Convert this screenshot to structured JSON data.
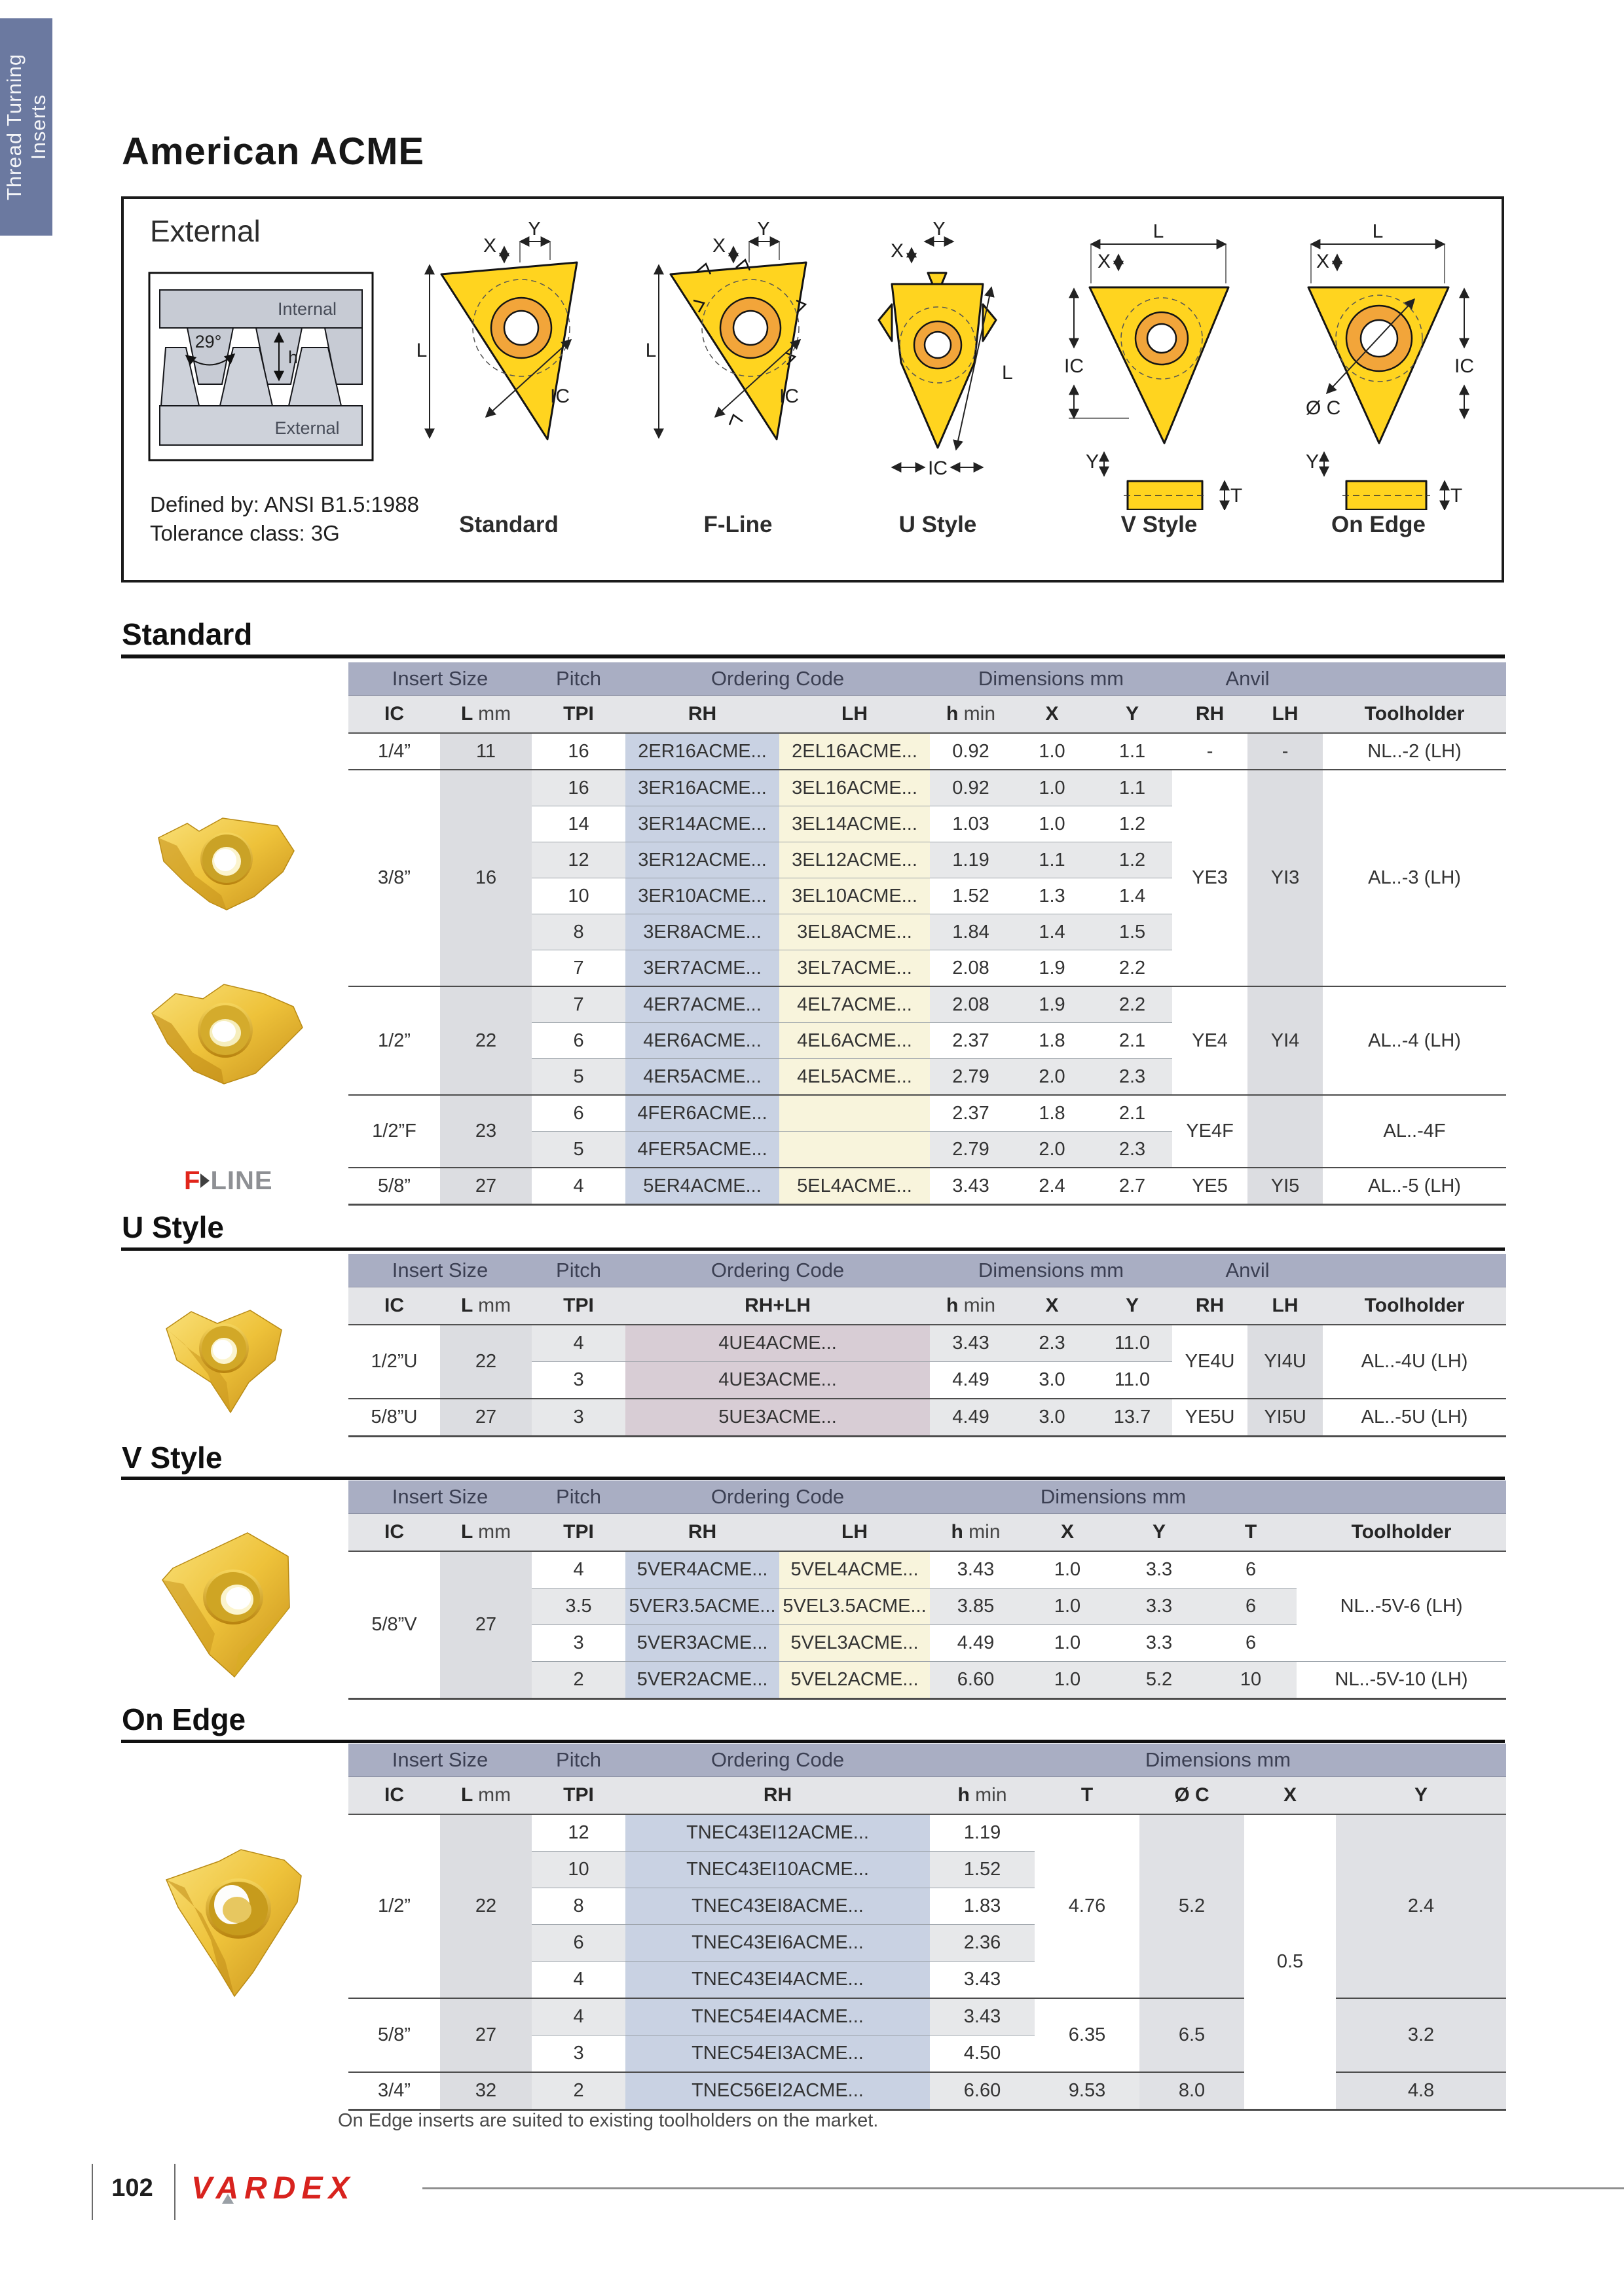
{
  "colors": {
    "sidebar_blue": "#6b79a0",
    "group_header": "#a9aec3",
    "column_header": "#e4e5e8",
    "band_gray": "#dcdde1",
    "row_stripe": "#e7e8ea",
    "band_blue": "#c9d2e3",
    "band_yellow": "#f8f4dc",
    "band_mauve": "#d8cdd5",
    "brand_red": "#d8231e",
    "insert_gold": "#eec23a"
  },
  "sidebar": {
    "line1": "Thread Turning",
    "line2": "Inserts"
  },
  "title": "American ACME",
  "external_box": {
    "title": "External",
    "defined_by": "Defined by: ANSI B1.5:1988",
    "tolerance": "Tolerance class: 3G",
    "profile": {
      "angle": "29°",
      "internal": "Internal",
      "external": "External",
      "h": "h"
    },
    "dim_labels": {
      "x": "X",
      "y": "Y",
      "l": "L",
      "ic": "IC",
      "t": "T",
      "dc": "Ø C"
    },
    "captions": [
      "Standard",
      "F-Line",
      "U Style",
      "V Style",
      "On Edge"
    ]
  },
  "labels": {
    "insert_size": "Insert Size",
    "pitch": "Pitch",
    "ordering_code": "Ordering Code",
    "dimensions": "Dimensions mm",
    "anvil": "Anvil",
    "ic": "IC",
    "l": "L",
    "mm": "mm",
    "tpi": "TPI",
    "rh": "RH",
    "lh": "LH",
    "rh_lh": "RH+LH",
    "h": "h",
    "min": "min",
    "x": "X",
    "y": "Y",
    "t": "T",
    "dc": "Ø C",
    "toolholder": "Toolholder"
  },
  "standard": {
    "heading": "Standard",
    "groups": [
      {
        "ic": "1/4”",
        "l": "11",
        "anvil_rh": "-",
        "anvil_lh": "-",
        "toolholder": "NL..-2 (LH)",
        "rows": [
          {
            "tpi": "16",
            "rh": "2ER16ACME...",
            "lh": "2EL16ACME...",
            "h": "0.92",
            "x": "1.0",
            "y": "1.1"
          }
        ]
      },
      {
        "ic": "3/8”",
        "l": "16",
        "anvil_rh": "YE3",
        "anvil_lh": "YI3",
        "toolholder": "AL..-3 (LH)",
        "rows": [
          {
            "tpi": "16",
            "rh": "3ER16ACME...",
            "lh": "3EL16ACME...",
            "h": "0.92",
            "x": "1.0",
            "y": "1.1"
          },
          {
            "tpi": "14",
            "rh": "3ER14ACME...",
            "lh": "3EL14ACME...",
            "h": "1.03",
            "x": "1.0",
            "y": "1.2"
          },
          {
            "tpi": "12",
            "rh": "3ER12ACME...",
            "lh": "3EL12ACME...",
            "h": "1.19",
            "x": "1.1",
            "y": "1.2"
          },
          {
            "tpi": "10",
            "rh": "3ER10ACME...",
            "lh": "3EL10ACME...",
            "h": "1.52",
            "x": "1.3",
            "y": "1.4"
          },
          {
            "tpi": "8",
            "rh": "3ER8ACME...",
            "lh": "3EL8ACME...",
            "h": "1.84",
            "x": "1.4",
            "y": "1.5"
          },
          {
            "tpi": "7",
            "rh": "3ER7ACME...",
            "lh": "3EL7ACME...",
            "h": "2.08",
            "x": "1.9",
            "y": "2.2"
          }
        ]
      },
      {
        "ic": "1/2”",
        "l": "22",
        "anvil_rh": "YE4",
        "anvil_lh": "YI4",
        "toolholder": "AL..-4 (LH)",
        "rows": [
          {
            "tpi": "7",
            "rh": "4ER7ACME...",
            "lh": "4EL7ACME...",
            "h": "2.08",
            "x": "1.9",
            "y": "2.2"
          },
          {
            "tpi": "6",
            "rh": "4ER6ACME...",
            "lh": "4EL6ACME...",
            "h": "2.37",
            "x": "1.8",
            "y": "2.1"
          },
          {
            "tpi": "5",
            "rh": "4ER5ACME...",
            "lh": "4EL5ACME...",
            "h": "2.79",
            "x": "2.0",
            "y": "2.3"
          }
        ]
      },
      {
        "ic": "1/2”F",
        "l": "23",
        "anvil_rh": "YE4F",
        "anvil_lh": "",
        "toolholder": "AL..-4F",
        "rows": [
          {
            "tpi": "6",
            "rh": "4FER6ACME...",
            "lh": "",
            "h": "2.37",
            "x": "1.8",
            "y": "2.1"
          },
          {
            "tpi": "5",
            "rh": "4FER5ACME...",
            "lh": "",
            "h": "2.79",
            "x": "2.0",
            "y": "2.3"
          }
        ]
      },
      {
        "ic": "5/8”",
        "l": "27",
        "anvil_rh": "YE5",
        "anvil_lh": "YI5",
        "toolholder": "AL..-5 (LH)",
        "rows": [
          {
            "tpi": "4",
            "rh": "5ER4ACME...",
            "lh": "5EL4ACME...",
            "h": "3.43",
            "x": "2.4",
            "y": "2.7"
          }
        ]
      }
    ]
  },
  "u_style": {
    "heading": "U Style",
    "groups": [
      {
        "ic": "1/2”U",
        "l": "22",
        "anvil_rh": "YE4U",
        "anvil_lh": "YI4U",
        "toolholder": "AL..-4U (LH)",
        "rows": [
          {
            "tpi": "4",
            "code": "4UE4ACME...",
            "h": "3.43",
            "x": "2.3",
            "y": "11.0"
          },
          {
            "tpi": "3",
            "code": "4UE3ACME...",
            "h": "4.49",
            "x": "3.0",
            "y": "11.0"
          }
        ]
      },
      {
        "ic": "5/8”U",
        "l": "27",
        "anvil_rh": "YE5U",
        "anvil_lh": "YI5U",
        "toolholder": "AL..-5U (LH)",
        "rows": [
          {
            "tpi": "3",
            "code": "5UE3ACME...",
            "h": "4.49",
            "x": "3.0",
            "y": "13.7"
          }
        ]
      }
    ]
  },
  "v_style": {
    "heading": "V Style",
    "groups": [
      {
        "ic": "5/8”V",
        "l": "27",
        "rows": [
          {
            "tpi": "4",
            "rh": "5VER4ACME...",
            "lh": "5VEL4ACME...",
            "h": "3.43",
            "x": "1.0",
            "y": "3.3",
            "t": "6"
          },
          {
            "tpi": "3.5",
            "rh": "5VER3.5ACME...",
            "lh": "5VEL3.5ACME...",
            "h": "3.85",
            "x": "1.0",
            "y": "3.3",
            "t": "6"
          },
          {
            "tpi": "3",
            "rh": "5VER3ACME...",
            "lh": "5VEL3ACME...",
            "h": "4.49",
            "x": "1.0",
            "y": "3.3",
            "t": "6"
          },
          {
            "tpi": "2",
            "rh": "5VER2ACME...",
            "lh": "5VEL2ACME...",
            "h": "6.60",
            "x": "1.0",
            "y": "5.2",
            "t": "10"
          }
        ]
      }
    ],
    "toolholders": [
      {
        "span": 3,
        "label": "NL..-5V-6 (LH)"
      },
      {
        "span": 1,
        "label": "NL..-5V-10 (LH)"
      }
    ]
  },
  "on_edge": {
    "heading": "On Edge",
    "x_all": "0.5",
    "groups": [
      {
        "ic": "1/2”",
        "l": "22",
        "t": "4.76",
        "dc": "5.2",
        "y": "2.4",
        "rows": [
          {
            "tpi": "12",
            "rh": "TNEC43EI12ACME...",
            "h": "1.19"
          },
          {
            "tpi": "10",
            "rh": "TNEC43EI10ACME...",
            "h": "1.52"
          },
          {
            "tpi": "8",
            "rh": "TNEC43EI8ACME...",
            "h": "1.83"
          },
          {
            "tpi": "6",
            "rh": "TNEC43EI6ACME...",
            "h": "2.36"
          },
          {
            "tpi": "4",
            "rh": "TNEC43EI4ACME...",
            "h": "3.43"
          }
        ]
      },
      {
        "ic": "5/8”",
        "l": "27",
        "t": "6.35",
        "dc": "6.5",
        "y": "3.2",
        "rows": [
          {
            "tpi": "4",
            "rh": "TNEC54EI4ACME...",
            "h": "3.43"
          },
          {
            "tpi": "3",
            "rh": "TNEC54EI3ACME...",
            "h": "4.50"
          }
        ]
      },
      {
        "ic": "3/4”",
        "l": "32",
        "t": "9.53",
        "dc": "8.0",
        "y": "4.8",
        "rows": [
          {
            "tpi": "2",
            "rh": "TNEC56EI2ACME...",
            "h": "6.60"
          }
        ]
      }
    ],
    "note": "On Edge inserts are suited to existing toolholders on the market."
  },
  "fline_logo": {
    "f": "F",
    "line": "LINE"
  },
  "footer": {
    "page_number": "102",
    "brand": "VARDEX"
  }
}
